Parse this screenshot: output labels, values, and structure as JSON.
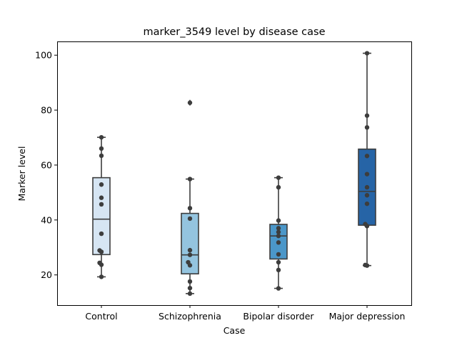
{
  "chart_data": {
    "type": "box",
    "title": "marker_3549 level by disease case",
    "xlabel": "Case",
    "ylabel": "Marker level",
    "ylim": [
      9,
      105
    ],
    "yticks": [
      20,
      40,
      60,
      80,
      100
    ],
    "grid": false,
    "categories": [
      "Control",
      "Schizophrenia",
      "Bipolar disorder",
      "Major depression"
    ],
    "box_colors": [
      "#d6e5f3",
      "#94c4df",
      "#4b97c9",
      "#2664a6"
    ],
    "boxes": [
      {
        "category": "Control",
        "whisker_low": 19.3,
        "q1": 27.4,
        "median": 40.3,
        "q3": 55.4,
        "whisker_high": 70.1,
        "outliers": []
      },
      {
        "category": "Schizophrenia",
        "whisker_low": 13.2,
        "q1": 20.4,
        "median": 27.3,
        "q3": 42.4,
        "whisker_high": 54.9,
        "outliers": [
          82.7
        ]
      },
      {
        "category": "Bipolar disorder",
        "whisker_low": 15.1,
        "q1": 25.8,
        "median": 34.2,
        "q3": 38.4,
        "whisker_high": 55.4,
        "outliers": []
      },
      {
        "category": "Major depression",
        "whisker_low": 23.4,
        "q1": 38.1,
        "median": 50.4,
        "q3": 65.8,
        "whisker_high": 100.7,
        "outliers": []
      }
    ],
    "points": [
      {
        "category": "Control",
        "values": [
          19.3,
          23.7,
          24.4,
          28.4,
          28.9,
          35.0,
          45.7,
          48.1,
          52.9,
          63.4,
          66.0,
          70.1
        ]
      },
      {
        "category": "Schizophrenia",
        "values": [
          13.2,
          15.2,
          17.6,
          23.5,
          24.6,
          27.3,
          29.0,
          40.5,
          44.3,
          54.9,
          82.7
        ]
      },
      {
        "category": "Bipolar disorder",
        "values": [
          15.1,
          21.8,
          24.6,
          27.5,
          31.8,
          34.2,
          35.6,
          37.0,
          39.8,
          51.9,
          55.4
        ]
      },
      {
        "category": "Major depression",
        "values": [
          23.4,
          23.6,
          37.8,
          38.5,
          45.9,
          49.0,
          51.9,
          56.7,
          63.3,
          73.7,
          78.0,
          100.7
        ]
      }
    ]
  }
}
